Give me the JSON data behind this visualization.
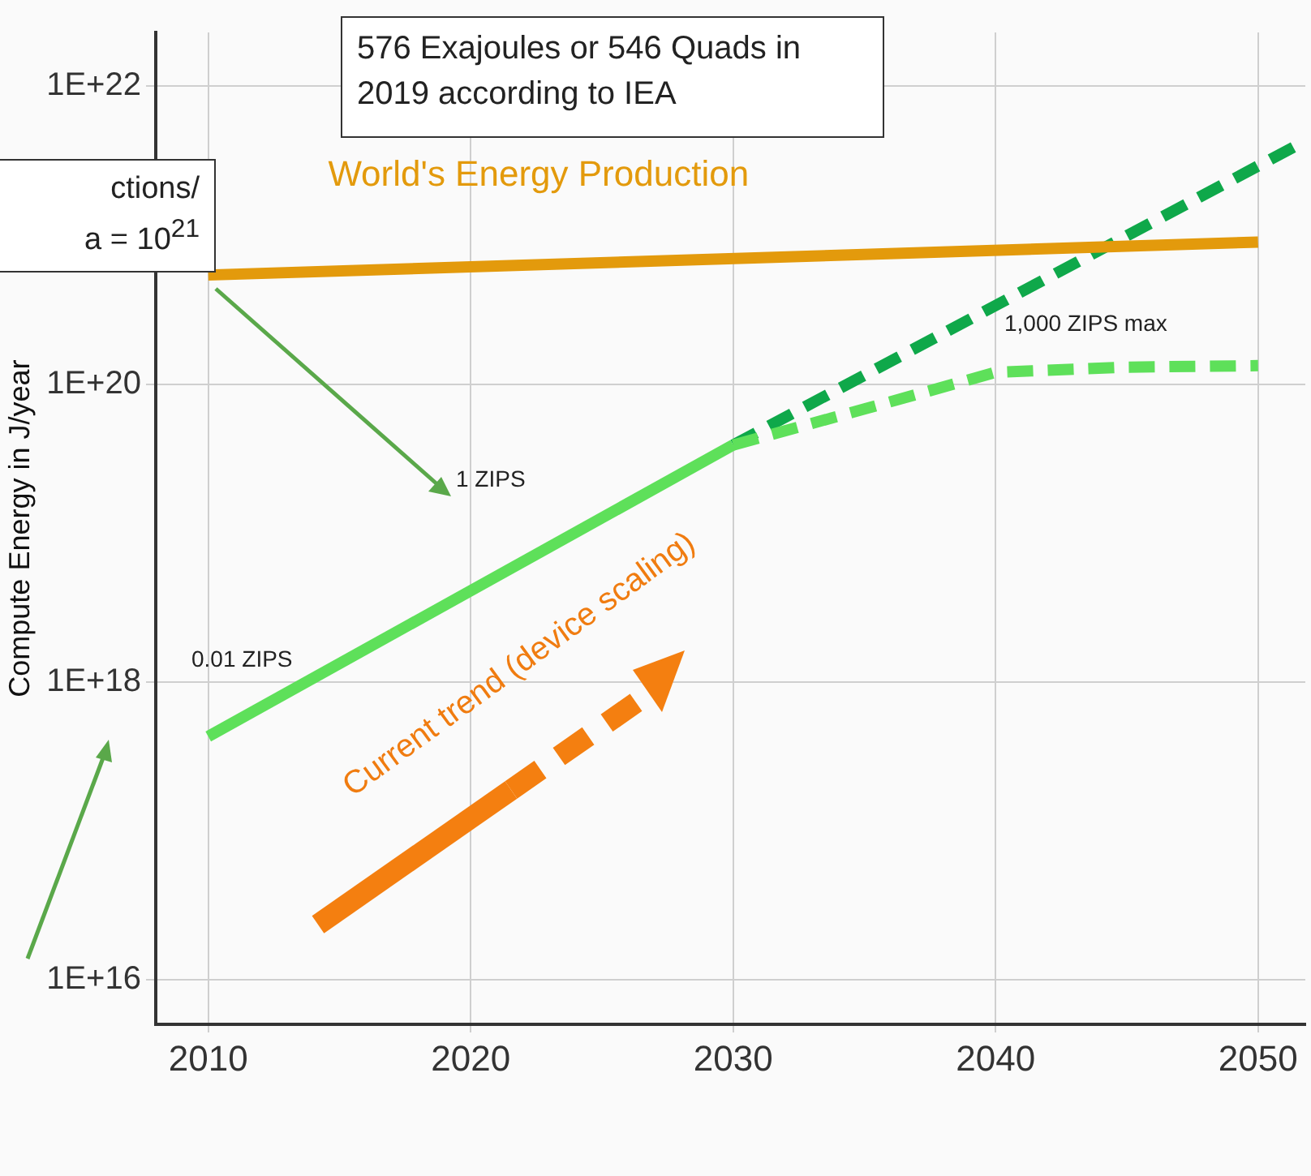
{
  "chart_data": {
    "type": "line",
    "ylabel": "Compute Energy in J/year",
    "annotations": [
      "576 Exajoules or 546 Quads in 2019 according to IEA",
      "ctions/\na = 10$^{21}$",
      "1 ZIPS",
      "0.01 ZIPS",
      "1,000 ZIPS max",
      "Current trend (device scaling)"
    ],
    "series": [
      {
        "name": "World's Energy Production",
        "color": "#e39a0c",
        "x": [
          2010,
          2050
        ],
        "values": [
          5.4e+20,
          9e+20
        ]
      },
      {
        "color": "#5ee05a",
        "x": [
          2010,
          2030
        ],
        "values": [
          4.3e+17,
          3.9e+19
        ]
      },
      {
        "color": "#5ee05a",
        "x": [
          2030,
          2035,
          2040,
          2045,
          2050
        ],
        "values": [
          3.9e+19,
          6.8e+19,
          1.2e+20,
          1.3e+20,
          1.33e+20
        ],
        "line_style": "dashed"
      },
      {
        "color": "#0fa84a",
        "x": [
          2030,
          2051.8
        ],
        "values": [
          3.9e+19,
          4.3e+21
        ],
        "line_style": "dashed"
      }
    ],
    "log": "y",
    "grid": true,
    "legend": false,
    "xlim": [
      2008,
      2051.8
    ],
    "xticks": [
      2010,
      2020,
      2030,
      2040,
      2050
    ],
    "ylim": [
      5000000000000000.0,
      2.3e+22
    ],
    "yticks": [
      {
        "value": 1e+16,
        "label": "1E+16"
      },
      {
        "value": 1e+18,
        "label": "1E+18"
      },
      {
        "value": 1e+20,
        "label": "1E+20"
      },
      {
        "value": 1e+22,
        "label": "1E+22"
      }
    ]
  }
}
